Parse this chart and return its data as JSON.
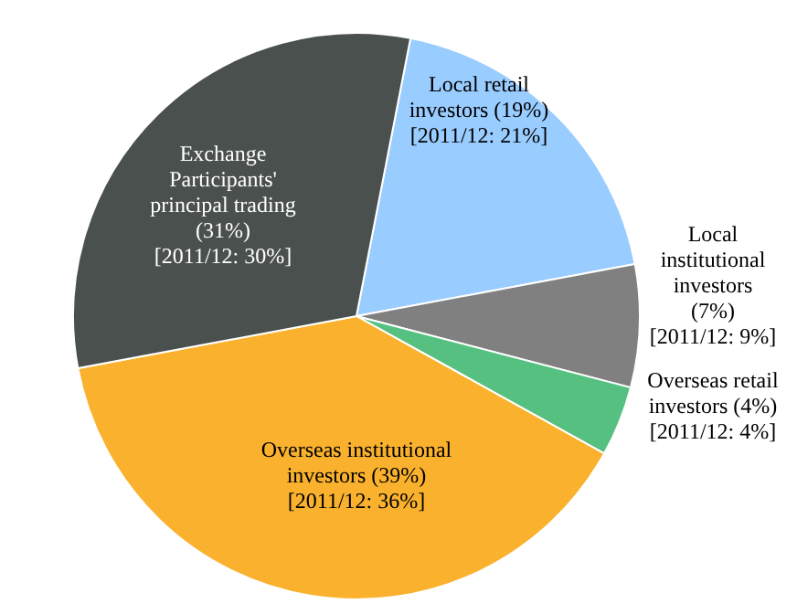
{
  "chart_data": {
    "type": "pie",
    "categories": [
      "Local retail investors",
      "Local institutional investors",
      "Overseas retail investors",
      "Overseas institutional investors",
      "Exchange Participants' principal trading"
    ],
    "values": [
      19,
      7,
      4,
      39,
      31
    ],
    "colors": [
      "#99ccff",
      "#808080",
      "#55c07f",
      "#fab22e",
      "#4a504d"
    ],
    "value_labels": [
      "(19%)",
      "(7%)",
      "(4%)",
      "(39%)",
      "(31%)"
    ],
    "annotations": [
      "[2011/12: 21%]",
      "[2011/12: 9%]",
      "[2011/12: 4%]",
      "[2011/12: 36%]",
      "[2011/12: 30%]"
    ]
  }
}
